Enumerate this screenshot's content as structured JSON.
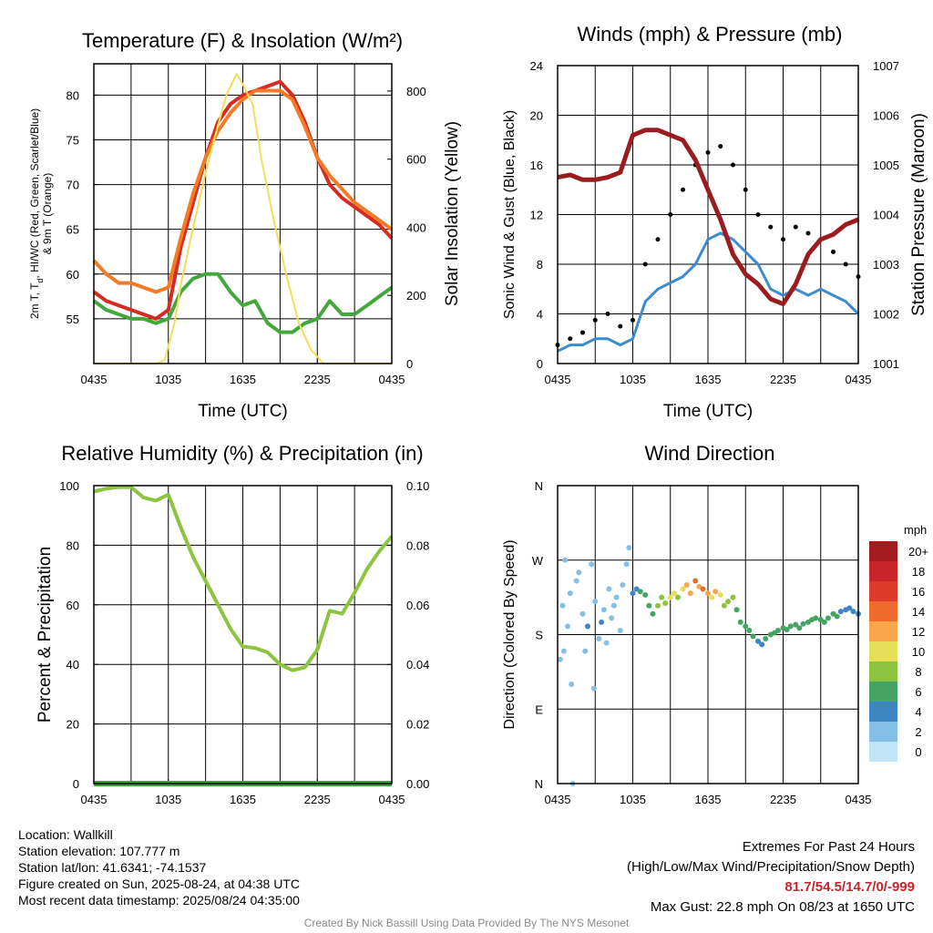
{
  "chart_data": [
    {
      "id": "temp",
      "type": "line",
      "title": "Temperature (F) & Insolation (W/m²)",
      "xlabel": "Time (UTC)",
      "ylabel": "2m T, Td, HI/WC (Red, Green, Scarlet/Blue) & 9m T (Orange)",
      "ylabel_lines": [
        "2m T, T",
        "d",
        ", HI/WC (Red, Green, Scarlet/Blue)",
        "& 9m T (Orange)"
      ],
      "y2label": "Solar Insolation (Yellow)",
      "x_ticks": [
        "0435",
        "1035",
        "1635",
        "2235",
        "0435"
      ],
      "ylim": [
        50,
        83.5
      ],
      "y_ticks": [
        55,
        60,
        65,
        70,
        75,
        80
      ],
      "y2lim": [
        0,
        880
      ],
      "y2_ticks": [
        0,
        200,
        400,
        600,
        800
      ],
      "x_hours": "hours since 04:35 UTC",
      "series": [
        {
          "name": "2m T",
          "color": "#d62b20",
          "axis": "y",
          "x": [
            0,
            1,
            2,
            3,
            4,
            5,
            6,
            7,
            8,
            9,
            10,
            11,
            12,
            13,
            14,
            15,
            16,
            17,
            18,
            19,
            20,
            21,
            22,
            23,
            24
          ],
          "y": [
            58,
            57,
            56.5,
            56,
            55.5,
            55,
            56,
            63,
            68,
            73,
            77,
            79,
            80,
            80.5,
            81,
            81.5,
            80,
            77,
            73,
            70,
            68.5,
            67.5,
            66.5,
            65.5,
            64
          ]
        },
        {
          "name": "9m T",
          "color": "#f47a26",
          "axis": "y",
          "x": [
            0,
            1,
            2,
            3,
            4,
            5,
            6,
            7,
            8,
            9,
            10,
            11,
            12,
            13,
            14,
            15,
            16,
            17,
            18,
            19,
            20,
            21,
            22,
            23,
            24
          ],
          "y": [
            61.5,
            60,
            59,
            59,
            58.5,
            58,
            58.5,
            64,
            69,
            73,
            76,
            78,
            79.5,
            80.5,
            80.5,
            80.5,
            79.5,
            76.5,
            73,
            71,
            69.5,
            68,
            67,
            66,
            65
          ]
        },
        {
          "name": "Td",
          "color": "#43a83b",
          "axis": "y",
          "x": [
            0,
            1,
            2,
            3,
            4,
            5,
            6,
            7,
            8,
            9,
            10,
            11,
            12,
            13,
            14,
            15,
            16,
            17,
            18,
            19,
            20,
            21,
            22,
            23,
            24
          ],
          "y": [
            57,
            56,
            55.5,
            55,
            55,
            54.5,
            55,
            58,
            59.5,
            60,
            60,
            58,
            56.5,
            57,
            54.5,
            53.5,
            53.5,
            54.5,
            55,
            57,
            55.5,
            55.5,
            56.5,
            57.5,
            58.5
          ]
        },
        {
          "name": "Solar Insolation",
          "color": "#f3de5a",
          "axis": "y2",
          "x": [
            0,
            5,
            5.7,
            6.5,
            7,
            8,
            9,
            10,
            10.7,
            11.5,
            12,
            12.8,
            13.5,
            14.5,
            15.5,
            16.5,
            17.5,
            18.5,
            24
          ],
          "y": [
            0,
            0,
            10,
            120,
            230,
            400,
            560,
            700,
            790,
            850,
            820,
            760,
            600,
            420,
            260,
            120,
            40,
            0,
            0
          ]
        }
      ]
    },
    {
      "id": "wind",
      "type": "line",
      "title": "Winds (mph) & Pressure (mb)",
      "xlabel": "Time (UTC)",
      "ylabel": "Sonic Wind & Gust (Blue, Black)",
      "y2label": "Station Pressure (Maroon)",
      "x_ticks": [
        "0435",
        "1035",
        "1635",
        "2235",
        "0435"
      ],
      "ylim": [
        0,
        24
      ],
      "y_ticks": [
        0,
        4,
        8,
        12,
        16,
        20,
        24
      ],
      "y2lim": [
        1001,
        1007
      ],
      "y2_ticks": [
        1001,
        1002,
        1003,
        1004,
        1005,
        1006,
        1007
      ],
      "series": [
        {
          "name": "Sonic Wind",
          "color": "#3d8bcf",
          "axis": "y",
          "x": [
            0,
            1,
            2,
            3,
            4,
            5,
            6,
            7,
            8,
            9,
            10,
            11,
            12,
            13,
            14,
            15,
            16,
            17,
            18,
            19,
            20,
            21,
            22,
            23,
            24
          ],
          "y": [
            1,
            1.5,
            1.5,
            2,
            2,
            1.5,
            2,
            5,
            6,
            6.5,
            7,
            8,
            10,
            10.5,
            10,
            9,
            8,
            6,
            5.5,
            6,
            5.5,
            6,
            5.5,
            5,
            4
          ]
        },
        {
          "name": "Gust",
          "color": "#000000",
          "axis": "y",
          "x": [
            0,
            1,
            2,
            3,
            4,
            5,
            6,
            7,
            8,
            9,
            10,
            11,
            12,
            13,
            14,
            15,
            16,
            17,
            18,
            19,
            20,
            21,
            22,
            23,
            24
          ],
          "y": [
            1.5,
            2,
            2.5,
            3.5,
            4,
            3,
            3.5,
            8,
            10,
            12,
            14,
            16,
            17,
            17.5,
            16,
            14,
            12,
            11,
            10,
            11,
            10.5,
            10,
            9,
            8,
            7
          ]
        },
        {
          "name": "Station Pressure",
          "color": "#9b1c1f",
          "axis": "y2",
          "x": [
            0,
            1,
            2,
            3,
            4,
            5,
            6,
            7,
            8,
            9,
            10,
            11,
            12,
            13,
            14,
            15,
            16,
            17,
            18,
            19,
            20,
            21,
            22,
            23,
            24
          ],
          "y": [
            1004.75,
            1004.8,
            1004.7,
            1004.7,
            1004.75,
            1004.85,
            1005.6,
            1005.7,
            1005.7,
            1005.6,
            1005.5,
            1005.1,
            1004.5,
            1003.9,
            1003.2,
            1002.8,
            1002.6,
            1002.3,
            1002.2,
            1002.6,
            1003.2,
            1003.5,
            1003.6,
            1003.8,
            1003.9
          ]
        }
      ]
    },
    {
      "id": "rh",
      "type": "line",
      "title": "Relative Humidity (%) & Precipitation (in)",
      "xlabel": "",
      "ylabel": "Percent & Precipitation",
      "x_ticks": [
        "0435",
        "1035",
        "1635",
        "2235",
        "0435"
      ],
      "ylim": [
        0,
        100
      ],
      "y_ticks": [
        0,
        20,
        40,
        60,
        80,
        100
      ],
      "y2lim": [
        0,
        0.1
      ],
      "y2_ticks": [
        "0.00",
        "0.02",
        "0.04",
        "0.06",
        "0.08",
        "0.10"
      ],
      "series": [
        {
          "name": "Relative Humidity",
          "color": "#8cc43f",
          "axis": "y",
          "x": [
            0,
            1,
            2,
            3,
            4,
            5,
            6,
            7,
            8,
            9,
            10,
            11,
            12,
            13,
            14,
            15,
            16,
            17,
            18,
            19,
            20,
            21,
            22,
            23,
            24
          ],
          "y": [
            98,
            99,
            99.5,
            99.5,
            96,
            95,
            97,
            86,
            76,
            68,
            60,
            52,
            46,
            45.5,
            44,
            40,
            38,
            39,
            45,
            58,
            57,
            64,
            72,
            78,
            83
          ]
        },
        {
          "name": "Precipitation",
          "color": "#3aa03a",
          "axis": "y",
          "x": [
            0,
            24
          ],
          "y": [
            0,
            0
          ]
        }
      ]
    },
    {
      "id": "dir",
      "type": "scatter",
      "title": "Wind Direction",
      "xlabel": "",
      "ylabel": "Direction (Colored By Speed)",
      "x_ticks": [
        "0435",
        "1035",
        "1635",
        "2235",
        "0435"
      ],
      "y_ticks": [
        "N",
        "E",
        "S",
        "W",
        "N"
      ],
      "ylim": [
        0,
        360
      ],
      "legend_title": "mph",
      "legend_labels": [
        "20+",
        "18",
        "16",
        "14",
        "12",
        "10",
        "8",
        "6",
        "4",
        "2",
        "0"
      ],
      "legend_colors": [
        "#a31b1e",
        "#c8242a",
        "#de3a2a",
        "#ef6a2d",
        "#f9a54a",
        "#e6df58",
        "#8cc43f",
        "#44a463",
        "#3f84c3",
        "#84bfe6",
        "#bfe4f5"
      ],
      "points": [
        {
          "x": 0.2,
          "y": 150,
          "s": 1
        },
        {
          "x": 0.4,
          "y": 215,
          "s": 1
        },
        {
          "x": 0.5,
          "y": 160,
          "s": 1
        },
        {
          "x": 0.6,
          "y": 270,
          "s": 1
        },
        {
          "x": 0.8,
          "y": 190,
          "s": 1
        },
        {
          "x": 1.0,
          "y": 230,
          "s": 1
        },
        {
          "x": 1.1,
          "y": 120,
          "s": 1
        },
        {
          "x": 1.2,
          "y": 0,
          "s": 1
        },
        {
          "x": 1.5,
          "y": 245,
          "s": 1
        },
        {
          "x": 1.7,
          "y": 255,
          "s": 1
        },
        {
          "x": 2.0,
          "y": 205,
          "s": 1
        },
        {
          "x": 2.2,
          "y": 160,
          "s": 1
        },
        {
          "x": 2.4,
          "y": 190,
          "s": 2
        },
        {
          "x": 2.7,
          "y": 265,
          "s": 1
        },
        {
          "x": 2.9,
          "y": 115,
          "s": 1
        },
        {
          "x": 3.0,
          "y": 220,
          "s": 1
        },
        {
          "x": 3.3,
          "y": 175,
          "s": 1
        },
        {
          "x": 3.5,
          "y": 195,
          "s": 2
        },
        {
          "x": 3.7,
          "y": 210,
          "s": 1
        },
        {
          "x": 3.9,
          "y": 170,
          "s": 1
        },
        {
          "x": 4.1,
          "y": 235,
          "s": 1
        },
        {
          "x": 4.3,
          "y": 200,
          "s": 1
        },
        {
          "x": 4.5,
          "y": 215,
          "s": 1
        },
        {
          "x": 4.7,
          "y": 225,
          "s": 1
        },
        {
          "x": 5.0,
          "y": 185,
          "s": 1
        },
        {
          "x": 5.2,
          "y": 240,
          "s": 1
        },
        {
          "x": 5.5,
          "y": 265,
          "s": 1
        },
        {
          "x": 5.7,
          "y": 285,
          "s": 1
        },
        {
          "x": 6.0,
          "y": 230,
          "s": 2
        },
        {
          "x": 6.3,
          "y": 235,
          "s": 2
        },
        {
          "x": 6.6,
          "y": 232,
          "s": 3
        },
        {
          "x": 7.0,
          "y": 228,
          "s": 3
        },
        {
          "x": 7.3,
          "y": 215,
          "s": 3
        },
        {
          "x": 7.6,
          "y": 205,
          "s": 3
        },
        {
          "x": 8.0,
          "y": 215,
          "s": 4
        },
        {
          "x": 8.3,
          "y": 225,
          "s": 4
        },
        {
          "x": 8.6,
          "y": 218,
          "s": 4
        },
        {
          "x": 9.0,
          "y": 225,
          "s": 5
        },
        {
          "x": 9.3,
          "y": 230,
          "s": 5
        },
        {
          "x": 9.6,
          "y": 225,
          "s": 4
        },
        {
          "x": 10.0,
          "y": 235,
          "s": 5
        },
        {
          "x": 10.3,
          "y": 240,
          "s": 6
        },
        {
          "x": 10.6,
          "y": 230,
          "s": 6
        },
        {
          "x": 11.0,
          "y": 245,
          "s": 7
        },
        {
          "x": 11.3,
          "y": 238,
          "s": 6
        },
        {
          "x": 11.6,
          "y": 235,
          "s": 7
        },
        {
          "x": 12.0,
          "y": 230,
          "s": 6
        },
        {
          "x": 12.3,
          "y": 225,
          "s": 5
        },
        {
          "x": 12.6,
          "y": 232,
          "s": 6
        },
        {
          "x": 13.0,
          "y": 228,
          "s": 5
        },
        {
          "x": 13.3,
          "y": 215,
          "s": 4
        },
        {
          "x": 13.6,
          "y": 220,
          "s": 4
        },
        {
          "x": 14.0,
          "y": 225,
          "s": 4
        },
        {
          "x": 14.3,
          "y": 210,
          "s": 3
        },
        {
          "x": 14.6,
          "y": 195,
          "s": 3
        },
        {
          "x": 15.0,
          "y": 190,
          "s": 3
        },
        {
          "x": 15.3,
          "y": 185,
          "s": 3
        },
        {
          "x": 15.6,
          "y": 178,
          "s": 3
        },
        {
          "x": 16.0,
          "y": 172,
          "s": 2
        },
        {
          "x": 16.3,
          "y": 168,
          "s": 2
        },
        {
          "x": 16.6,
          "y": 175,
          "s": 3
        },
        {
          "x": 17.0,
          "y": 180,
          "s": 3
        },
        {
          "x": 17.3,
          "y": 182,
          "s": 3
        },
        {
          "x": 17.6,
          "y": 185,
          "s": 3
        },
        {
          "x": 18.0,
          "y": 188,
          "s": 3
        },
        {
          "x": 18.3,
          "y": 186,
          "s": 3
        },
        {
          "x": 18.6,
          "y": 190,
          "s": 3
        },
        {
          "x": 19.0,
          "y": 192,
          "s": 3
        },
        {
          "x": 19.3,
          "y": 188,
          "s": 3
        },
        {
          "x": 19.6,
          "y": 193,
          "s": 3
        },
        {
          "x": 20.0,
          "y": 195,
          "s": 3
        },
        {
          "x": 20.3,
          "y": 198,
          "s": 3
        },
        {
          "x": 20.6,
          "y": 200,
          "s": 3
        },
        {
          "x": 21.0,
          "y": 198,
          "s": 3
        },
        {
          "x": 21.3,
          "y": 195,
          "s": 3
        },
        {
          "x": 21.6,
          "y": 200,
          "s": 3
        },
        {
          "x": 22.0,
          "y": 205,
          "s": 3
        },
        {
          "x": 22.3,
          "y": 202,
          "s": 3
        },
        {
          "x": 22.6,
          "y": 208,
          "s": 2
        },
        {
          "x": 23.0,
          "y": 210,
          "s": 2
        },
        {
          "x": 23.3,
          "y": 212,
          "s": 2
        },
        {
          "x": 23.6,
          "y": 208,
          "s": 2
        },
        {
          "x": 24.0,
          "y": 205,
          "s": 2
        }
      ]
    }
  ],
  "info": {
    "location": "Location: Wallkill",
    "elevation": "Station elevation: 107.777 m",
    "latlon": "Station lat/lon: 41.6341; -74.1537",
    "created": "Figure created on Sun, 2025-08-24, at 04:38 UTC",
    "recent": "Most recent data timestamp: 2025/08/24 04:35:00"
  },
  "extremes": {
    "title": "Extremes For Past 24 Hours",
    "subtitle": "(High/Low/Max Wind/Precipitation/Snow Depth)",
    "values": "81.7/54.5/14.7/0/-999",
    "max_gust": "Max Gust: 22.8 mph On 08/23 at 1650 UTC"
  },
  "credit": "Created By Nick Bassill Using Data Provided By The NYS Mesonet"
}
